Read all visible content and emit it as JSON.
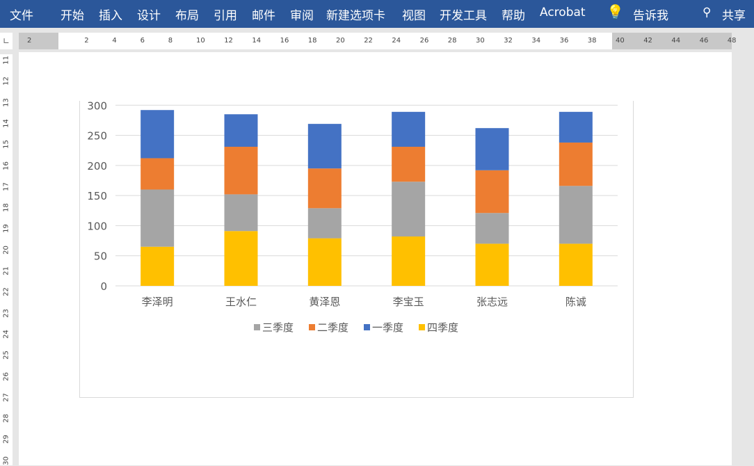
{
  "ribbon": {
    "tabs": [
      "文件",
      "开始",
      "插入",
      "设计",
      "布局",
      "引用",
      "邮件",
      "审阅",
      "新建选项卡",
      "视图",
      "开发工具",
      "帮助",
      "Acrobat"
    ],
    "tell_me": "告诉我",
    "share": "共享"
  },
  "ruler": {
    "horizontal": [
      "2",
      "2",
      "4",
      "6",
      "8",
      "10",
      "12",
      "14",
      "16",
      "18",
      "20",
      "22",
      "24",
      "26",
      "28",
      "30",
      "32",
      "34",
      "36",
      "38",
      "40",
      "42",
      "44",
      "46",
      "48"
    ],
    "vertical": [
      "11",
      "12",
      "13",
      "14",
      "15",
      "16",
      "17",
      "18",
      "19",
      "20",
      "21",
      "22",
      "23",
      "24",
      "25",
      "26",
      "27",
      "28",
      "29",
      "30"
    ]
  },
  "colors": {
    "ribbon": "#2b579a",
    "s1": "#a5a5a5",
    "s2": "#ed7d31",
    "s3": "#4472c4",
    "s4": "#ffc000"
  },
  "chart_data": {
    "type": "bar",
    "stacked": true,
    "categories": [
      "李泽明",
      "王水仁",
      "黄泽恩",
      "李宝玉",
      "张志远",
      "陈诚"
    ],
    "series": [
      {
        "name": "四季度",
        "color": "#ffc000",
        "values": [
          65,
          91,
          79,
          82,
          70,
          70
        ]
      },
      {
        "name": "三季度",
        "color": "#a5a5a5",
        "values": [
          95,
          61,
          50,
          91,
          51,
          96
        ]
      },
      {
        "name": "二季度",
        "color": "#ed7d31",
        "values": [
          52,
          79,
          66,
          58,
          71,
          72
        ]
      },
      {
        "name": "一季度",
        "color": "#4472c4",
        "values": [
          80,
          54,
          74,
          58,
          70,
          51
        ]
      }
    ],
    "legend_order": [
      "三季度",
      "二季度",
      "一季度",
      "四季度"
    ],
    "legend": "bottom",
    "ylim": [
      0,
      350
    ],
    "yticks": [
      "0",
      "50",
      "100",
      "150",
      "200",
      "250",
      "300",
      "350"
    ],
    "grid": true
  }
}
